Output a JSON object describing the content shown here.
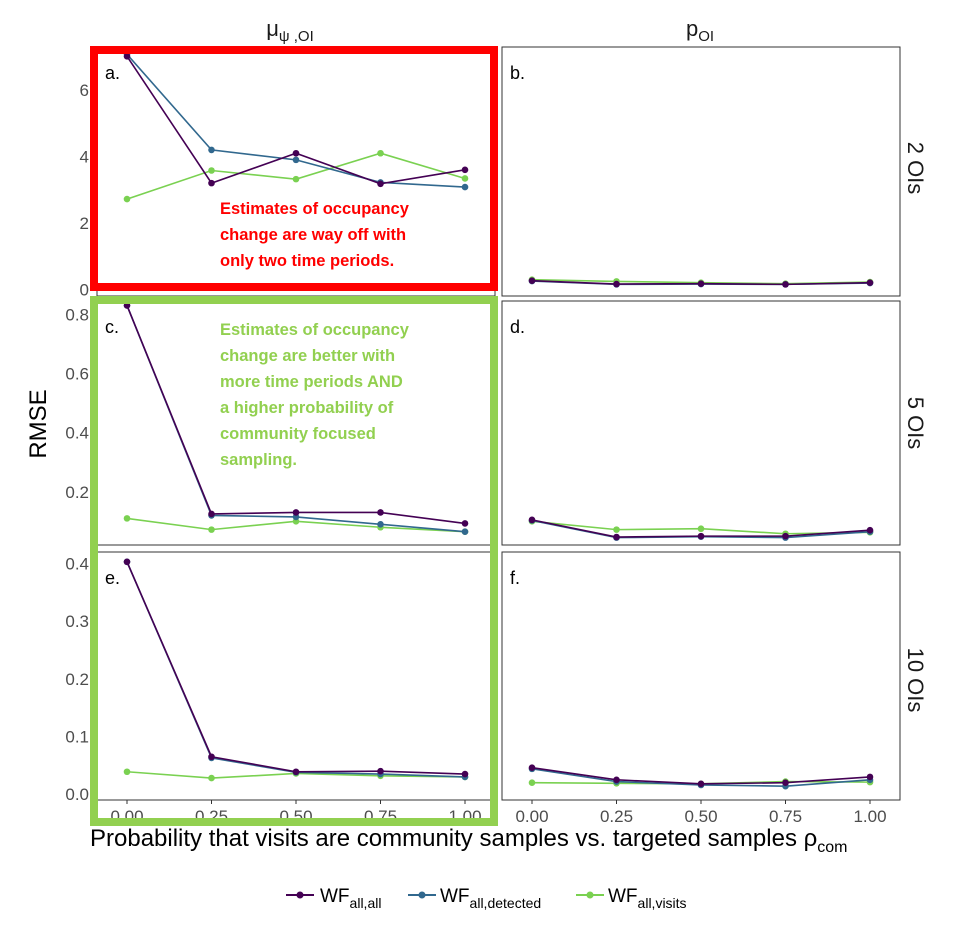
{
  "figure": {
    "y_axis_title": "RMSE",
    "x_axis_title": "Probability that visits are community samples vs. targeted samples ρ",
    "x_axis_title_sub": "com",
    "column_strips": [
      {
        "base": "μ",
        "sub": "ψ ,OI"
      },
      {
        "base": "p",
        "sub": "OI"
      }
    ],
    "row_strips": [
      "2  OIs",
      "5  OIs",
      "10  OIs"
    ],
    "x_tick_labels": [
      "0.00",
      "0.25",
      "0.50",
      "0.75",
      "1.00"
    ],
    "legend": [
      {
        "base": "WF",
        "sub": "all,all",
        "color": "#440154"
      },
      {
        "base": "WF",
        "sub": "all,detected",
        "color": "#31688e"
      },
      {
        "base": "WF",
        "sub": "all,visits",
        "color": "#7ad151"
      }
    ],
    "annotations": [
      {
        "color": "#ff0000",
        "lines": [
          "Estimates of occupancy",
          "change are way off with",
          "only two time periods."
        ]
      },
      {
        "color": "#92d050",
        "lines": [
          "Estimates of occupancy",
          "change are better with",
          "more time periods AND",
          "a higher probability of",
          "community focused",
          "sampling."
        ]
      }
    ]
  },
  "chart_data": [
    {
      "type": "line",
      "panel": "a.",
      "x": [
        0,
        0.25,
        0.5,
        0.75,
        1.0
      ],
      "ylim": [
        -0.2,
        7.3
      ],
      "yticks": [
        0,
        2,
        4,
        6
      ],
      "series": [
        {
          "name": "WF all,all",
          "values": [
            7.02,
            3.2,
            4.1,
            3.18,
            3.6
          ]
        },
        {
          "name": "WF all,detected",
          "values": [
            7.08,
            4.2,
            3.9,
            3.22,
            3.08
          ]
        },
        {
          "name": "WF all,visits",
          "values": [
            2.72,
            3.58,
            3.32,
            4.1,
            3.34
          ]
        }
      ]
    },
    {
      "type": "line",
      "panel": "b.",
      "x": [
        0,
        0.25,
        0.5,
        0.75,
        1.0
      ],
      "ylim": [
        -0.2,
        7.3
      ],
      "yticks": [],
      "series": [
        {
          "name": "WF all,all",
          "values": [
            0.26,
            0.16,
            0.17,
            0.15,
            0.2
          ]
        },
        {
          "name": "WF all,detected",
          "values": [
            0.25,
            0.15,
            0.16,
            0.15,
            0.19
          ]
        },
        {
          "name": "WF all,visits",
          "values": [
            0.29,
            0.24,
            0.2,
            0.17,
            0.22
          ]
        }
      ]
    },
    {
      "type": "line",
      "panel": "c.",
      "x": [
        0,
        0.25,
        0.5,
        0.75,
        1.0
      ],
      "ylim": [
        0.02,
        0.845
      ],
      "yticks": [
        0.2,
        0.4,
        0.6,
        0.8
      ],
      "series": [
        {
          "name": "WF all,all",
          "values": [
            0.83,
            0.125,
            0.13,
            0.13,
            0.093
          ]
        },
        {
          "name": "WF all,detected",
          "values": [
            0.83,
            0.12,
            0.115,
            0.09,
            0.065
          ]
        },
        {
          "name": "WF all,visits",
          "values": [
            0.11,
            0.072,
            0.1,
            0.08,
            0.065
          ]
        }
      ]
    },
    {
      "type": "line",
      "panel": "d.",
      "x": [
        0,
        0.25,
        0.5,
        0.75,
        1.0
      ],
      "ylim": [
        0.02,
        0.845
      ],
      "yticks": [],
      "series": [
        {
          "name": "WF all,all",
          "values": [
            0.105,
            0.047,
            0.05,
            0.05,
            0.07
          ]
        },
        {
          "name": "WF all,detected",
          "values": [
            0.103,
            0.045,
            0.048,
            0.045,
            0.065
          ]
        },
        {
          "name": "WF all,visits",
          "values": [
            0.1,
            0.072,
            0.075,
            0.058,
            0.063
          ]
        }
      ]
    },
    {
      "type": "line",
      "panel": "e.",
      "x": [
        0,
        0.25,
        0.5,
        0.75,
        1.0
      ],
      "ylim": [
        -0.01,
        0.42
      ],
      "yticks": [
        0.0,
        0.1,
        0.2,
        0.3,
        0.4
      ],
      "series": [
        {
          "name": "WF all,all",
          "values": [
            0.403,
            0.065,
            0.039,
            0.04,
            0.035
          ]
        },
        {
          "name": "WF all,detected",
          "values": [
            0.403,
            0.063,
            0.038,
            0.035,
            0.03
          ]
        },
        {
          "name": "WF all,visits",
          "values": [
            0.039,
            0.028,
            0.036,
            0.032,
            0.03
          ]
        }
      ]
    },
    {
      "type": "line",
      "panel": "f.",
      "x": [
        0,
        0.25,
        0.5,
        0.75,
        1.0
      ],
      "ylim": [
        -0.01,
        0.42
      ],
      "yticks": [],
      "series": [
        {
          "name": "WF all,all",
          "values": [
            0.046,
            0.025,
            0.018,
            0.02,
            0.03
          ]
        },
        {
          "name": "WF all,detected",
          "values": [
            0.044,
            0.022,
            0.016,
            0.014,
            0.025
          ]
        },
        {
          "name": "WF all,visits",
          "values": [
            0.02,
            0.019,
            0.018,
            0.022,
            0.021
          ]
        }
      ]
    }
  ]
}
